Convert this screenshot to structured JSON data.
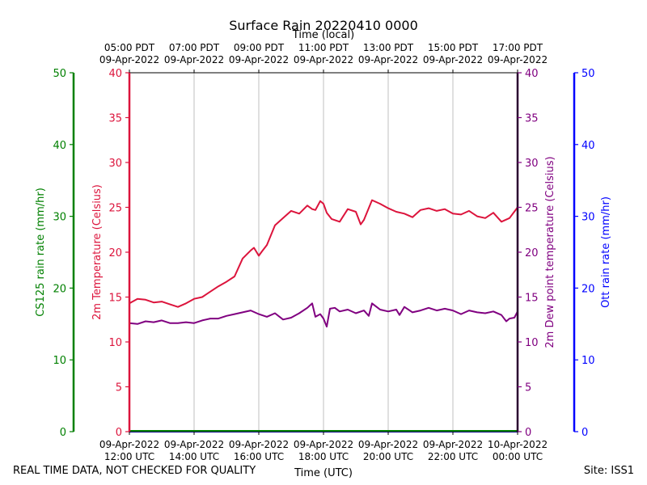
{
  "chart_data": {
    "type": "line",
    "title": "Surface Rain 20220410 0000",
    "top_axis_title": "Time (local)",
    "xlabel": "Time (UTC)",
    "x_ticks_bottom": [
      [
        "09-Apr-2022",
        "12:00 UTC"
      ],
      [
        "09-Apr-2022",
        "14:00 UTC"
      ],
      [
        "09-Apr-2022",
        "16:00 UTC"
      ],
      [
        "09-Apr-2022",
        "18:00 UTC"
      ],
      [
        "09-Apr-2022",
        "20:00 UTC"
      ],
      [
        "09-Apr-2022",
        "22:00 UTC"
      ],
      [
        "10-Apr-2022",
        "00:00 UTC"
      ]
    ],
    "x_ticks_top": [
      [
        "05:00 PDT",
        "09-Apr-2022"
      ],
      [
        "07:00 PDT",
        "09-Apr-2022"
      ],
      [
        "09:00 PDT",
        "09-Apr-2022"
      ],
      [
        "11:00 PDT",
        "09-Apr-2022"
      ],
      [
        "13:00 PDT",
        "09-Apr-2022"
      ],
      [
        "15:00 PDT",
        "09-Apr-2022"
      ],
      [
        "17:00 PDT",
        "09-Apr-2022"
      ]
    ],
    "x_range_hours_utc": [
      12,
      24
    ],
    "grid": "vertical",
    "axes": {
      "temperature": {
        "label": "2m Temperature (Celsius)",
        "range": [
          0,
          40
        ],
        "ticks": [
          0,
          5,
          10,
          15,
          20,
          25,
          30,
          35,
          40
        ],
        "color": "#dc143c"
      },
      "dewpoint": {
        "label": "2m Dew point temperature (Celsius)",
        "range": [
          0,
          40
        ],
        "ticks": [
          0,
          5,
          10,
          15,
          20,
          25,
          30,
          35,
          40
        ],
        "color": "#800080"
      },
      "cs125": {
        "label": "CS125 rain rate (mm/hr)",
        "range": [
          0,
          50
        ],
        "ticks": [
          0,
          10,
          20,
          30,
          40,
          50
        ],
        "color": "#008000"
      },
      "ott": {
        "label": "Ott rain rate (mm/hr)",
        "range": [
          0,
          50
        ],
        "ticks": [
          0,
          10,
          20,
          30,
          40,
          50
        ],
        "color": "#0000ff"
      }
    },
    "series": [
      {
        "name": "2m Temperature",
        "axis": "temperature",
        "color": "#dc143c",
        "x": [
          12.0,
          12.25,
          12.5,
          12.75,
          13.0,
          13.25,
          13.5,
          13.75,
          14.0,
          14.25,
          14.5,
          14.75,
          15.0,
          15.25,
          15.5,
          15.75,
          15.85,
          16.0,
          16.1,
          16.25,
          16.5,
          16.75,
          17.0,
          17.25,
          17.5,
          17.65,
          17.75,
          17.9,
          18.0,
          18.1,
          18.25,
          18.5,
          18.75,
          19.0,
          19.15,
          19.25,
          19.5,
          19.75,
          20.0,
          20.25,
          20.5,
          20.75,
          21.0,
          21.25,
          21.5,
          21.75,
          22.0,
          22.25,
          22.5,
          22.75,
          23.0,
          23.25,
          23.5,
          23.75,
          24.0
        ],
        "values": [
          14.3,
          14.8,
          14.7,
          14.4,
          14.5,
          14.2,
          13.9,
          14.3,
          14.8,
          15.0,
          15.6,
          16.2,
          16.7,
          17.3,
          19.3,
          20.2,
          20.5,
          19.6,
          20.1,
          20.8,
          23.0,
          23.8,
          24.6,
          24.3,
          25.2,
          24.8,
          24.7,
          25.7,
          25.4,
          24.4,
          23.7,
          23.4,
          24.8,
          24.5,
          23.1,
          23.6,
          25.8,
          25.4,
          24.9,
          24.5,
          24.3,
          23.9,
          24.7,
          24.9,
          24.6,
          24.8,
          24.3,
          24.2,
          24.6,
          24.0,
          23.8,
          24.4,
          23.4,
          23.8,
          25.0
        ]
      },
      {
        "name": "2m Dew point temperature",
        "axis": "dewpoint",
        "color": "#800080",
        "x": [
          12.0,
          12.25,
          12.5,
          12.75,
          13.0,
          13.25,
          13.5,
          13.75,
          14.0,
          14.25,
          14.5,
          14.75,
          15.0,
          15.25,
          15.5,
          15.75,
          16.0,
          16.25,
          16.5,
          16.75,
          17.0,
          17.25,
          17.5,
          17.65,
          17.75,
          17.9,
          18.0,
          18.1,
          18.2,
          18.35,
          18.5,
          18.75,
          19.0,
          19.25,
          19.4,
          19.5,
          19.75,
          20.0,
          20.25,
          20.35,
          20.5,
          20.75,
          21.0,
          21.25,
          21.5,
          21.75,
          22.0,
          22.25,
          22.5,
          22.75,
          23.0,
          23.25,
          23.5,
          23.65,
          23.75,
          23.9,
          24.0
        ],
        "values": [
          12.1,
          12.0,
          12.3,
          12.2,
          12.4,
          12.1,
          12.1,
          12.2,
          12.1,
          12.4,
          12.6,
          12.6,
          12.9,
          13.1,
          13.3,
          13.5,
          13.1,
          12.8,
          13.2,
          12.5,
          12.7,
          13.2,
          13.8,
          14.3,
          12.8,
          13.1,
          12.6,
          11.7,
          13.7,
          13.8,
          13.4,
          13.6,
          13.2,
          13.5,
          12.9,
          14.3,
          13.6,
          13.4,
          13.6,
          13.0,
          13.9,
          13.3,
          13.5,
          13.8,
          13.5,
          13.7,
          13.5,
          13.1,
          13.5,
          13.3,
          13.2,
          13.4,
          13.0,
          12.3,
          12.6,
          12.7,
          13.4
        ]
      },
      {
        "name": "CS125 rain rate",
        "axis": "cs125",
        "color": "#008000",
        "x": [
          12.0,
          24.0
        ],
        "values": [
          0,
          0
        ]
      },
      {
        "name": "Ott rain rate",
        "axis": "ott",
        "color": "#0000ff",
        "x": [
          12.0,
          24.0
        ],
        "values": [
          0,
          0
        ]
      }
    ]
  },
  "footer": {
    "disclaimer": "REAL TIME DATA, NOT CHECKED FOR QUALITY",
    "site": "Site: ISS1"
  }
}
